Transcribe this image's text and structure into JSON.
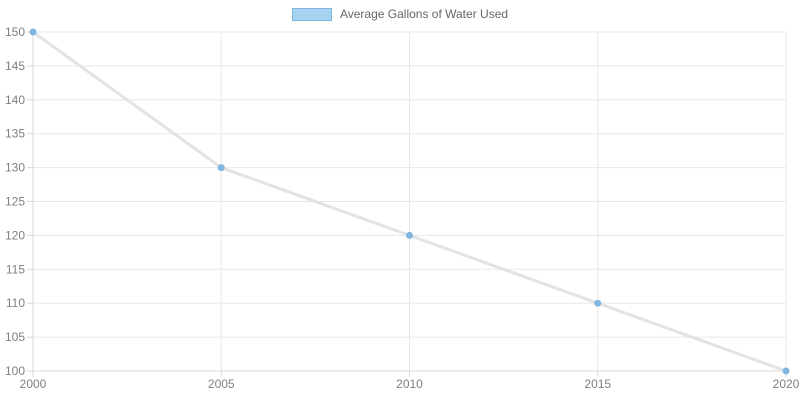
{
  "chart_data": {
    "type": "line",
    "title": "",
    "xlabel": "",
    "ylabel": "",
    "x": [
      2000,
      2005,
      2010,
      2015,
      2020
    ],
    "xticks": [
      "2000",
      "2005",
      "2010",
      "2015",
      "2020"
    ],
    "yticks": [
      100,
      105,
      110,
      115,
      120,
      125,
      130,
      135,
      140,
      145,
      150
    ],
    "xlim": [
      2000,
      2020
    ],
    "ylim": [
      100,
      150
    ],
    "grid": true,
    "legend_position": "top-center",
    "series": [
      {
        "name": "Average Gallons of Water Used",
        "values": [
          150,
          130,
          120,
          110,
          100
        ]
      }
    ],
    "colors": {
      "line": "#e3e3e3",
      "point": "#7eb6e1",
      "legend_fill": "#a8d2f2",
      "legend_border": "#7eb6e1",
      "grid": "#e8e8e8",
      "axis": "#d9d9d9",
      "tick_label": "#808080",
      "legend_text": "#666666"
    }
  }
}
